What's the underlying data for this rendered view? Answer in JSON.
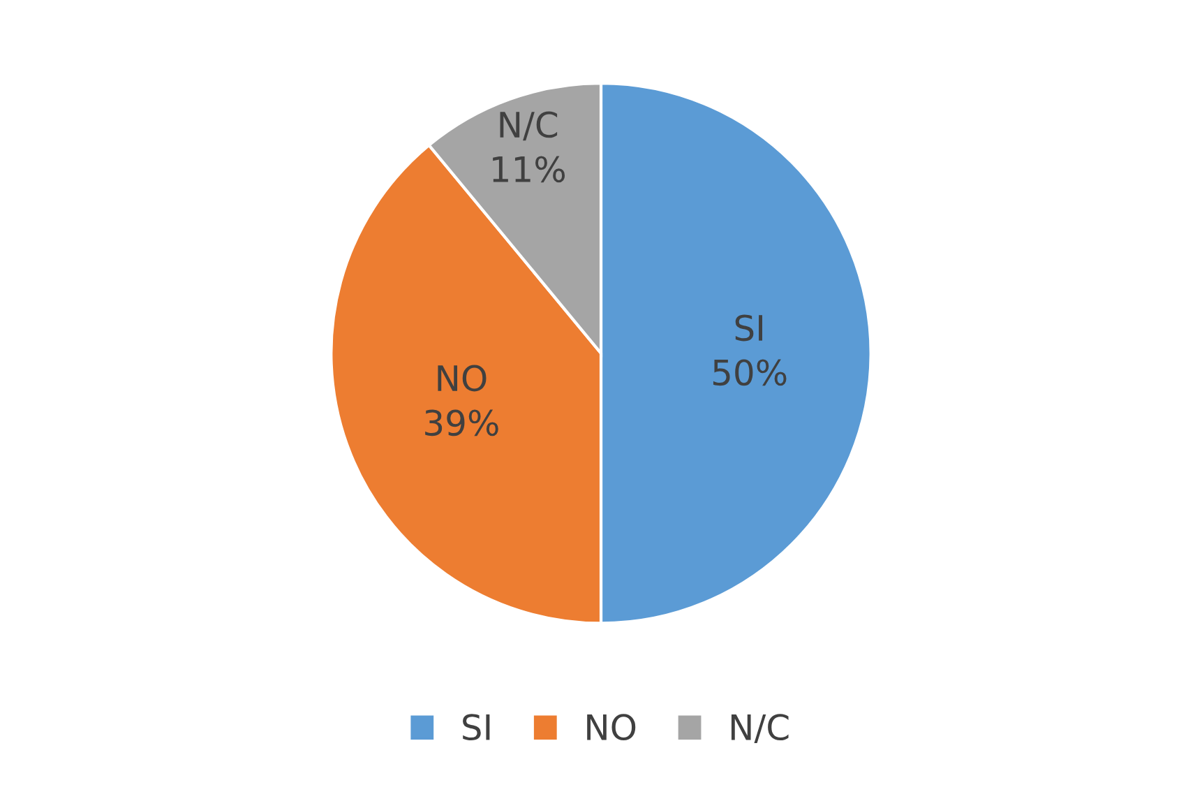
{
  "chart_data": {
    "type": "pie",
    "categories": [
      "SI",
      "NO",
      "N/C"
    ],
    "values": [
      50,
      39,
      11
    ],
    "value_labels": [
      "50%",
      "39%",
      "11%"
    ],
    "colors": [
      "#5b9bd5",
      "#ed7d31",
      "#a5a5a5"
    ],
    "legend": "bottom"
  }
}
